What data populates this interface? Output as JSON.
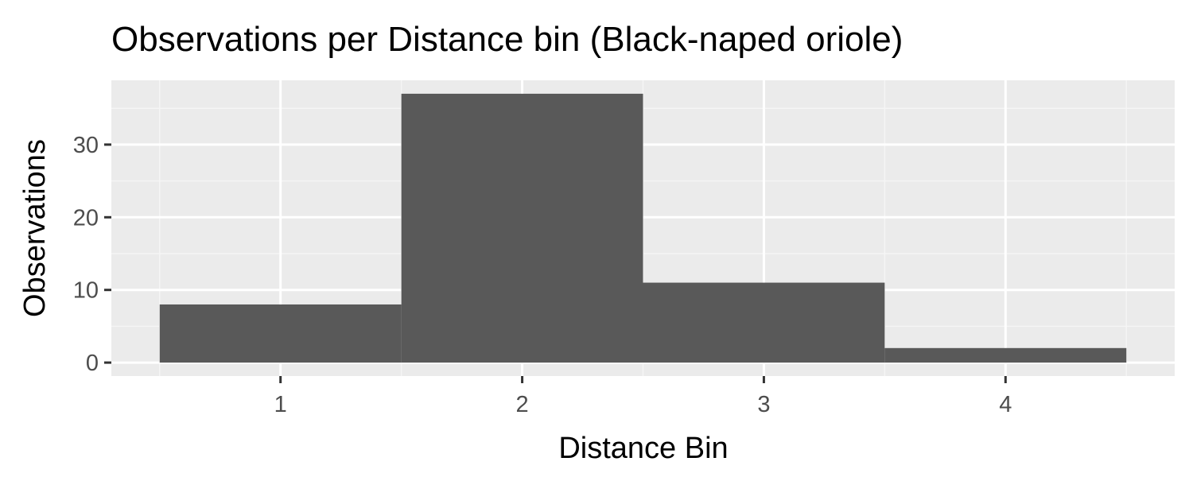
{
  "chart_data": {
    "type": "bar",
    "title": "Observations per Distance bin (Black-naped oriole)",
    "xlabel": "Distance Bin",
    "ylabel": "Observations",
    "categories": [
      "1",
      "2",
      "3",
      "4"
    ],
    "values": [
      8,
      37,
      11,
      2
    ],
    "x_ticks": [
      "1",
      "2",
      "3",
      "4"
    ],
    "y_ticks": [
      0,
      10,
      20,
      30
    ],
    "xlim": [
      0.3,
      4.7
    ],
    "ylim": [
      -1.85,
      38.85
    ],
    "grid": true,
    "legend": "none",
    "colors": {
      "bar_fill": "#595959",
      "panel_background": "#ebebeb",
      "grid_major": "#ffffff",
      "grid_minor": "#f5f5f5",
      "tick_text": "#4d4d4d"
    }
  }
}
